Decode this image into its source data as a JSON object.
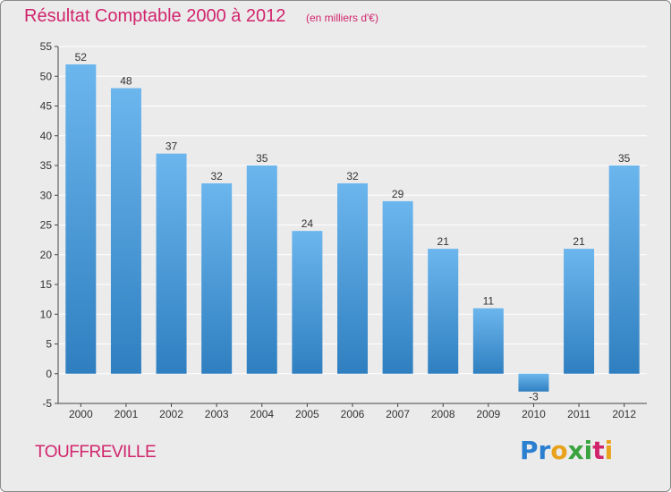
{
  "title": "Résultat Comptable 2000 à 2012",
  "subtitle": "(en milliers d'€)",
  "town": "TOUFFREVILLE",
  "logo": {
    "letters": [
      {
        "char": "P",
        "color": "#2a7fd0"
      },
      {
        "char": "r",
        "color": "#2a7fd0"
      },
      {
        "char": "o",
        "color": "#e9a21b"
      },
      {
        "char": "x",
        "color": "#3aa33f"
      },
      {
        "char": "i",
        "color": "#3aa33f"
      },
      {
        "char": "t",
        "color": "#d1246d"
      },
      {
        "char": "i",
        "color": "#e9a21b"
      }
    ]
  },
  "colors": {
    "bar_light": "#6cb6ee",
    "bar_dark": "#2f7fc0",
    "title": "#d1246d",
    "grid": "#ffffff",
    "axis": "#444444"
  },
  "chart_data": {
    "type": "bar",
    "title": "Résultat Comptable 2000 à 2012",
    "ylabel": "(en milliers d'€)",
    "xlabel": "",
    "categories": [
      "2000",
      "2001",
      "2002",
      "2003",
      "2004",
      "2005",
      "2006",
      "2007",
      "2008",
      "2009",
      "2010",
      "2011",
      "2012"
    ],
    "values": [
      52,
      48,
      37,
      32,
      35,
      24,
      32,
      29,
      21,
      11,
      -3,
      21,
      35
    ],
    "ylim": [
      -5,
      55
    ],
    "yticks": [
      -5,
      0,
      5,
      10,
      15,
      20,
      25,
      30,
      35,
      40,
      45,
      50,
      55
    ],
    "grid": true
  }
}
